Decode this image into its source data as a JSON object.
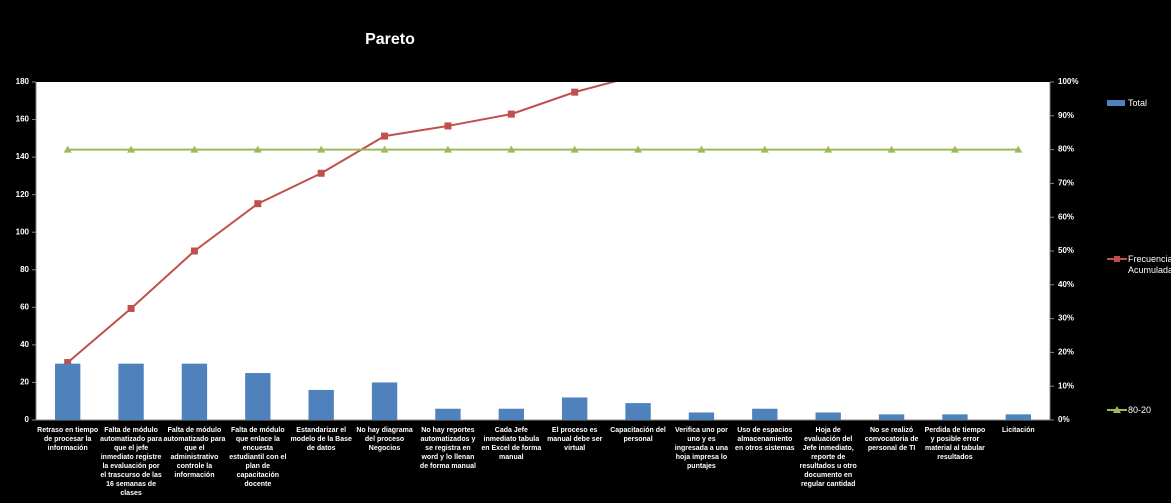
{
  "chart_data": {
    "type": "bar",
    "title": "Pareto",
    "categories": [
      "Retraso en tiempo de procesar la información",
      "Falta de módulo automatizado para que el jefe inmediato registre la evaluación por el trascurso de las 16 semanas de clases",
      "Falta de módulo automatizado para que el administrativo controle la información",
      "Falta de módulo que enlace la encuesta estudiantil con el plan de capacitación docente",
      "Estandarizar el modelo de la Base de datos",
      "No hay diagrama del proceso Negocios",
      "No hay reportes automatizados y se registra en word y lo llenan de forma manual",
      "Cada Jefe inmediato tabula en Excel de forma manual",
      "El proceso es manual debe ser virtual",
      "Capacitación del personal",
      "Verifica uno por uno y es ingresada a una hoja impresa lo puntajes",
      "Uso de espacios almacenamiento en otros sistemas",
      "Hoja de evaluación del Jefe inmediato, reporte de resultados u otro documento en regular cantidad",
      "No se realizó convocatoria de personal de TI",
      "Perdida de tiempo y posible error material al tabular resultados",
      "Licitación"
    ],
    "series": [
      {
        "name": "Total",
        "type": "bar",
        "color": "#4f81bd",
        "values": [
          30,
          30,
          30,
          25,
          16,
          20,
          6,
          6,
          12,
          9,
          4,
          6,
          4,
          3,
          3,
          3
        ]
      },
      {
        "name": "Frecuencia Acumulada",
        "type": "line",
        "axis": "y2",
        "color": "#c0504d",
        "values": [
          17,
          33,
          50,
          64,
          73,
          84,
          87,
          90.5,
          97,
          102,
          null,
          null,
          null,
          null,
          null,
          null
        ]
      },
      {
        "name": "80-20",
        "type": "line",
        "axis": "y2",
        "color": "#9bbb59",
        "values": [
          80,
          80,
          80,
          80,
          80,
          80,
          80,
          80,
          80,
          80,
          80,
          80,
          80,
          80,
          80,
          80
        ]
      }
    ],
    "ylim": [
      0,
      180
    ],
    "yticks": [
      0,
      20,
      40,
      60,
      80,
      100,
      120,
      140,
      160,
      180
    ],
    "y2lim": [
      0,
      100
    ],
    "y2ticks": [
      {
        "value": 0,
        "label": "0%"
      },
      {
        "value": 10,
        "label": "10%"
      },
      {
        "value": 20,
        "label": "20%"
      },
      {
        "value": 30,
        "label": "30%"
      },
      {
        "value": 40,
        "label": "40%"
      },
      {
        "value": 50,
        "label": "50%"
      },
      {
        "value": 60,
        "label": "60%"
      },
      {
        "value": 70,
        "label": "70%"
      },
      {
        "value": 80,
        "label": "80%"
      },
      {
        "value": 90,
        "label": "90%"
      },
      {
        "value": 100,
        "label": "100%"
      }
    ],
    "grid": false
  }
}
